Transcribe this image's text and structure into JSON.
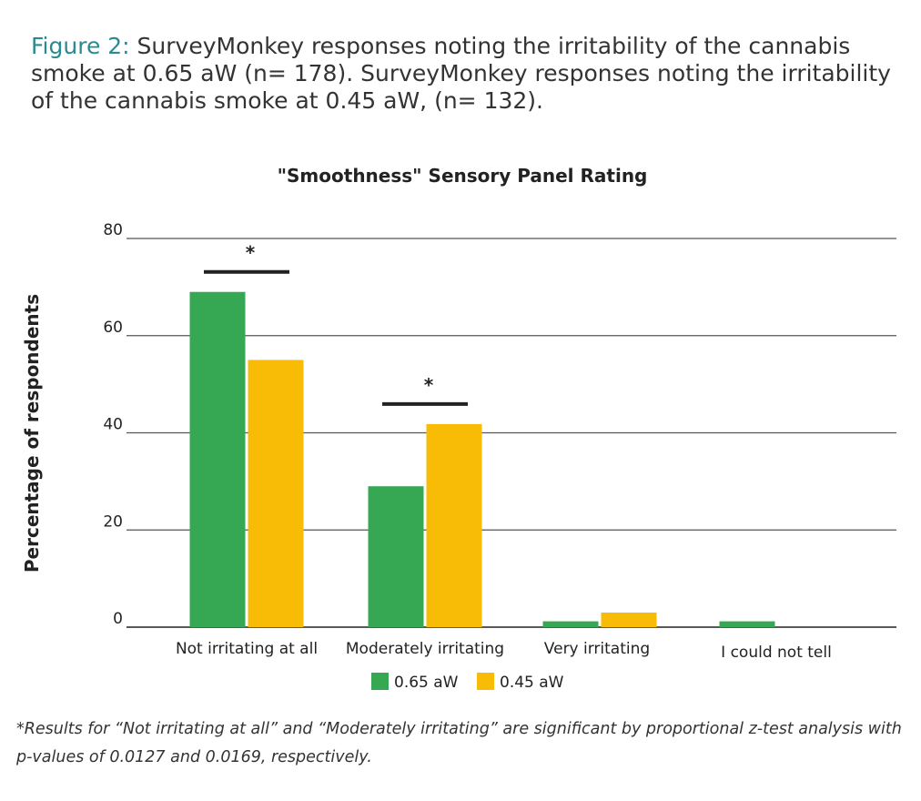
{
  "caption": {
    "label": "Figure 2:",
    "text": " SurveyMonkey responses noting the irritability of the cannabis smoke at 0.65 aW (n= 178). SurveyMonkey responses noting the irritability of the cannabis smoke at 0.45 aW, (n= 132)."
  },
  "footnote": "*Results for “Not irritating at all” and “Moderately irritating” are  significant by proportional z-test analysis with p-values of 0.0127 and 0.0169, respectively.",
  "chart_data": {
    "type": "bar",
    "title": "\"Smoothness\" Sensory Panel Rating",
    "xlabel": "",
    "ylabel": "Percentage of respondents",
    "ylim": [
      0,
      80
    ],
    "yticks": [
      0,
      20,
      40,
      60,
      80
    ],
    "grid": true,
    "legend_position": "bottom-center",
    "categories": [
      "Not irritating at all",
      "Moderately irritating",
      "Very irritating",
      "I could not tell"
    ],
    "series": [
      {
        "name": "0.65 aW",
        "color": "#36a853",
        "values": [
          69,
          29,
          1.2,
          1.2
        ]
      },
      {
        "name": "0.45 aW",
        "color": "#f9bc06",
        "values": [
          55,
          41.8,
          3,
          0
        ]
      }
    ],
    "significance": [
      {
        "category_index": 0,
        "label": "*"
      },
      {
        "category_index": 1,
        "label": "*"
      }
    ]
  }
}
